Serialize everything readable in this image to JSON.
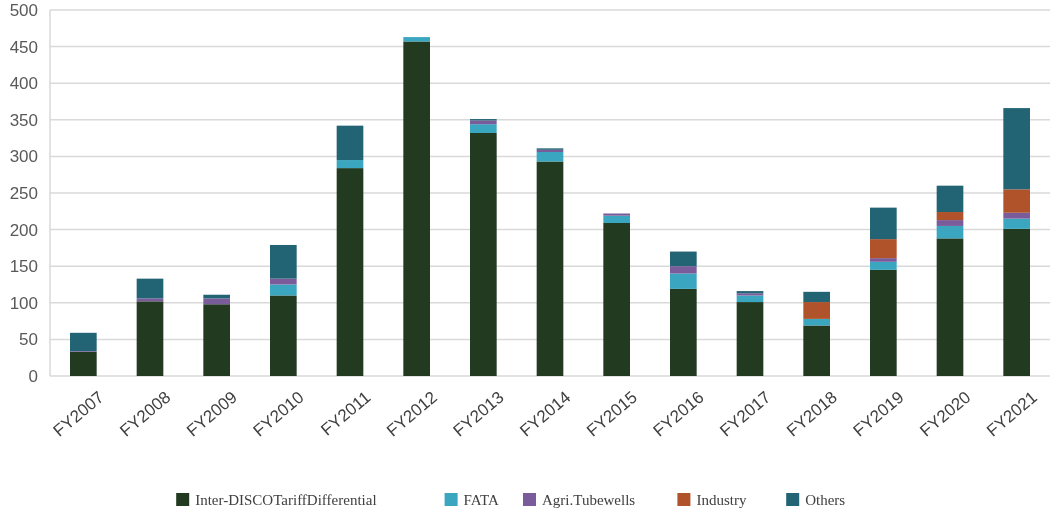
{
  "chart_data": {
    "type": "bar",
    "stacked": true,
    "categories": [
      "FY2007",
      "FY2008",
      "FY2009",
      "FY2010",
      "FY2011",
      "FY2012",
      "FY2013",
      "FY2014",
      "FY2015",
      "FY2016",
      "FY2017",
      "FY2018",
      "FY2019",
      "FY2020",
      "FY2021"
    ],
    "series": [
      {
        "name": "Inter-DISCOTariffDifferential",
        "color": "#223a1f",
        "values": [
          33,
          102,
          98,
          110,
          284,
          457,
          332,
          293,
          209,
          119,
          101,
          69,
          145,
          188,
          201
        ]
      },
      {
        "name": "FATA",
        "color": "#3aa6bf",
        "values": [
          0,
          0,
          0,
          15,
          11,
          6,
          12,
          13,
          10,
          21,
          9,
          9,
          11,
          17,
          14
        ]
      },
      {
        "name": "Agri.Tubewells",
        "color": "#7b5c9b",
        "values": [
          1,
          4,
          8,
          8,
          0,
          0,
          5,
          3,
          3,
          10,
          3,
          0,
          5,
          8,
          8
        ]
      },
      {
        "name": "Industry",
        "color": "#b0532b",
        "values": [
          0,
          0,
          0,
          0,
          0,
          0,
          0,
          0,
          0,
          0,
          0,
          23,
          26,
          11,
          32
        ]
      },
      {
        "name": "Others",
        "color": "#226374",
        "values": [
          25,
          27,
          5,
          46,
          47,
          0,
          2,
          2,
          0,
          20,
          3,
          14,
          43,
          36,
          111
        ]
      }
    ],
    "ylim": [
      0,
      500
    ],
    "yticks": [
      0,
      50,
      100,
      150,
      200,
      250,
      300,
      350,
      400,
      450,
      500
    ],
    "grid": "y",
    "legend": "bottom"
  }
}
